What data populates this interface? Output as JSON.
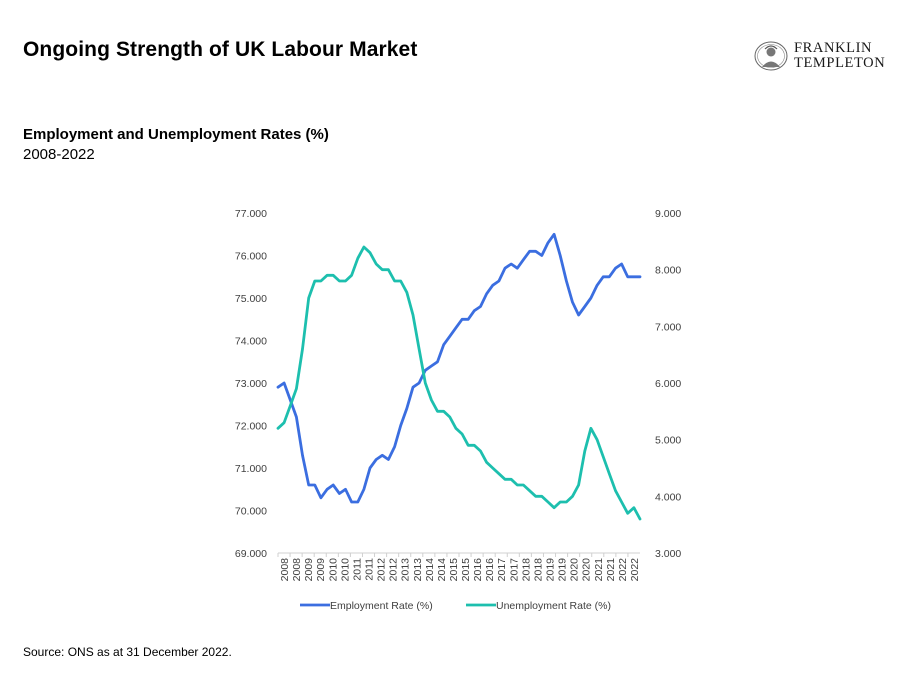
{
  "header": {
    "title": "Ongoing Strength of UK Labour Market",
    "logo_line1": "FRANKLIN",
    "logo_line2": "TEMPLETON"
  },
  "chart_header": {
    "subtitle": "Employment and Unemployment Rates (%)",
    "range": "2008-2022"
  },
  "footer": {
    "source": "Source: ONS as at 31 December 2022."
  },
  "colors": {
    "employment": "#3b6ee0",
    "unemployment": "#1dbfae",
    "axis": "#d0d0d0",
    "text": "#404040"
  },
  "chart_data": {
    "type": "line",
    "left_axis": {
      "min": 69,
      "max": 77,
      "ticks": [
        "69.000",
        "70.000",
        "71.000",
        "72.000",
        "73.000",
        "74.000",
        "75.000",
        "76.000",
        "77.000"
      ]
    },
    "right_axis": {
      "min": 3,
      "max": 9,
      "ticks": [
        "3.000",
        "4.000",
        "5.000",
        "6.000",
        "7.000",
        "8.000",
        "9.000"
      ]
    },
    "x_tick_labels": [
      "2008",
      "2008",
      "2009",
      "2009",
      "2010",
      "2010",
      "2011",
      "2011",
      "2012",
      "2012",
      "2013",
      "2013",
      "2014",
      "2014",
      "2015",
      "2015",
      "2016",
      "2016",
      "2017",
      "2017",
      "2018",
      "2018",
      "2019",
      "2019",
      "2020",
      "2020",
      "2021",
      "2021",
      "2022",
      "2022"
    ],
    "series": [
      {
        "name": "Employment Rate (%)",
        "axis": "left",
        "x": [
          2008.0,
          2008.25,
          2008.5,
          2008.75,
          2009.0,
          2009.25,
          2009.5,
          2009.75,
          2010.0,
          2010.25,
          2010.5,
          2010.75,
          2011.0,
          2011.25,
          2011.5,
          2011.75,
          2012.0,
          2012.25,
          2012.5,
          2012.75,
          2013.0,
          2013.25,
          2013.5,
          2013.75,
          2014.0,
          2014.25,
          2014.5,
          2014.75,
          2015.0,
          2015.25,
          2015.5,
          2015.75,
          2016.0,
          2016.25,
          2016.5,
          2016.75,
          2017.0,
          2017.25,
          2017.5,
          2017.75,
          2018.0,
          2018.25,
          2018.5,
          2018.75,
          2019.0,
          2019.25,
          2019.5,
          2019.75,
          2020.0,
          2020.25,
          2020.5,
          2020.75,
          2021.0,
          2021.25,
          2021.5,
          2021.75,
          2022.0,
          2022.25,
          2022.5,
          2022.75
        ],
        "values": [
          72.9,
          73.0,
          72.6,
          72.2,
          71.3,
          70.6,
          70.6,
          70.3,
          70.5,
          70.6,
          70.4,
          70.5,
          70.2,
          70.2,
          70.5,
          71.0,
          71.2,
          71.3,
          71.2,
          71.5,
          72.0,
          72.4,
          72.9,
          73.0,
          73.3,
          73.4,
          73.5,
          73.9,
          74.1,
          74.3,
          74.5,
          74.5,
          74.7,
          74.8,
          75.1,
          75.3,
          75.4,
          75.7,
          75.8,
          75.7,
          75.9,
          76.1,
          76.1,
          76.0,
          76.3,
          76.5,
          76.0,
          75.4,
          74.9,
          74.6,
          74.8,
          75.0,
          75.3,
          75.5,
          75.5,
          75.7,
          75.8,
          75.5,
          75.5,
          75.5
        ]
      },
      {
        "name": "Unemployment Rate (%)",
        "axis": "right",
        "x": [
          2008.0,
          2008.25,
          2008.5,
          2008.75,
          2009.0,
          2009.25,
          2009.5,
          2009.75,
          2010.0,
          2010.25,
          2010.5,
          2010.75,
          2011.0,
          2011.25,
          2011.5,
          2011.75,
          2012.0,
          2012.25,
          2012.5,
          2012.75,
          2013.0,
          2013.25,
          2013.5,
          2013.75,
          2014.0,
          2014.25,
          2014.5,
          2014.75,
          2015.0,
          2015.25,
          2015.5,
          2015.75,
          2016.0,
          2016.25,
          2016.5,
          2016.75,
          2017.0,
          2017.25,
          2017.5,
          2017.75,
          2018.0,
          2018.25,
          2018.5,
          2018.75,
          2019.0,
          2019.25,
          2019.5,
          2019.75,
          2020.0,
          2020.25,
          2020.5,
          2020.75,
          2021.0,
          2021.25,
          2021.5,
          2021.75,
          2022.0,
          2022.25,
          2022.5,
          2022.75
        ],
        "values": [
          5.2,
          5.3,
          5.6,
          5.9,
          6.6,
          7.5,
          7.8,
          7.8,
          7.9,
          7.9,
          7.8,
          7.8,
          7.9,
          8.2,
          8.4,
          8.3,
          8.1,
          8.0,
          8.0,
          7.8,
          7.8,
          7.6,
          7.2,
          6.6,
          6.0,
          5.7,
          5.5,
          5.5,
          5.4,
          5.2,
          5.1,
          4.9,
          4.9,
          4.8,
          4.6,
          4.5,
          4.4,
          4.3,
          4.3,
          4.2,
          4.2,
          4.1,
          4.0,
          4.0,
          3.9,
          3.8,
          3.9,
          3.9,
          4.0,
          4.2,
          4.8,
          5.2,
          5.0,
          4.7,
          4.4,
          4.1,
          3.9,
          3.7,
          3.8,
          3.6
        ]
      }
    ]
  }
}
